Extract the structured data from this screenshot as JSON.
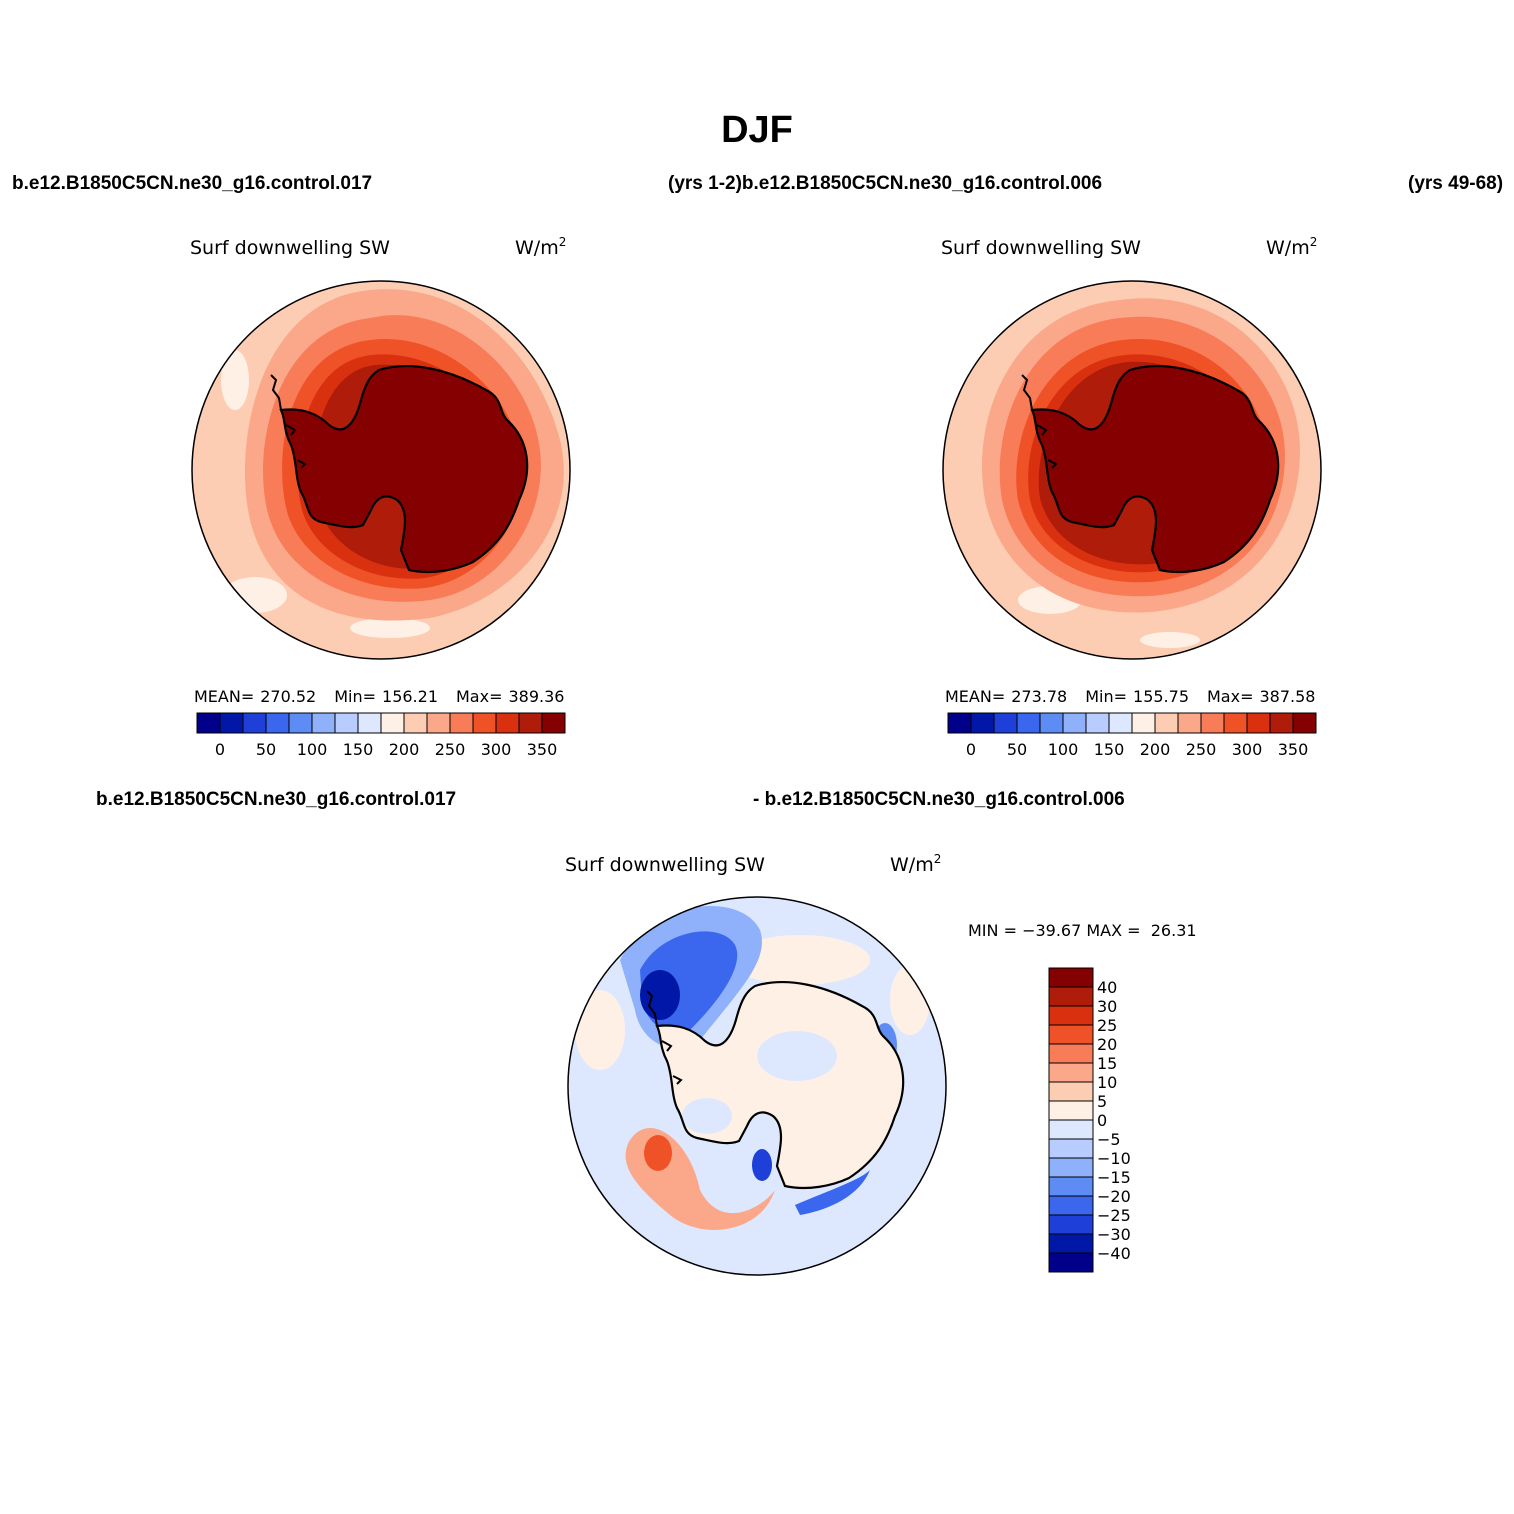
{
  "figure": {
    "title": "DJF",
    "header_left": "b.e12.B1850C5CN.ne30_g16.control.017",
    "header_mid": "(yrs 1-2)b.e12.B1850C5CN.ne30_g16.control.006",
    "header_right": "(yrs 49-68)",
    "diff_header_left": "b.e12.B1850C5CN.ne30_g16.control.017",
    "diff_header_right": "- b.e12.B1850C5CN.ne30_g16.control.006"
  },
  "panels": [
    {
      "variable": "Surf downwelling SW",
      "units": "W/m",
      "units_sup": "2",
      "stats": {
        "mean_label": "MEAN=",
        "mean": "270.52",
        "min_label": "Min=",
        "min": "156.21",
        "max_label": "Max=",
        "max": "389.36"
      }
    },
    {
      "variable": "Surf downwelling SW",
      "units": "W/m",
      "units_sup": "2",
      "stats": {
        "mean_label": "MEAN=",
        "mean": "273.78",
        "min_label": "Min=",
        "min": "155.75",
        "max_label": "Max=",
        "max": "387.58"
      }
    }
  ],
  "diff_panel": {
    "variable": "Surf downwelling SW",
    "units": "W/m",
    "units_sup": "2",
    "minmax_text": "MIN = −39.67 MAX =  26.31"
  },
  "colorbar_abs": {
    "tick_labels": [
      "0",
      "50",
      "100",
      "150",
      "200",
      "250",
      "300",
      "350"
    ],
    "colors": [
      "#00008a",
      "#0017a8",
      "#1e40d8",
      "#3b66ee",
      "#5e8cf5",
      "#8fb0fa",
      "#b8ccff",
      "#dde8ff",
      "#fff0e6",
      "#fdcdb3",
      "#fba88a",
      "#f87c58",
      "#f05228",
      "#d93110",
      "#b01c0a",
      "#850000"
    ]
  },
  "colorbar_diff": {
    "tick_labels": [
      "40",
      "30",
      "25",
      "20",
      "15",
      "10",
      "5",
      "0",
      "−5",
      "−10",
      "−15",
      "−20",
      "−25",
      "−30",
      "−40"
    ],
    "colors": [
      "#850000",
      "#b01c0a",
      "#d93110",
      "#f05228",
      "#f87c58",
      "#fba88a",
      "#fdcdb3",
      "#fff0e6",
      "#dde8ff",
      "#b8ccff",
      "#8fb0fa",
      "#5e8cf5",
      "#3b66ee",
      "#1e40d8",
      "#0017a8",
      "#00008a"
    ]
  }
}
